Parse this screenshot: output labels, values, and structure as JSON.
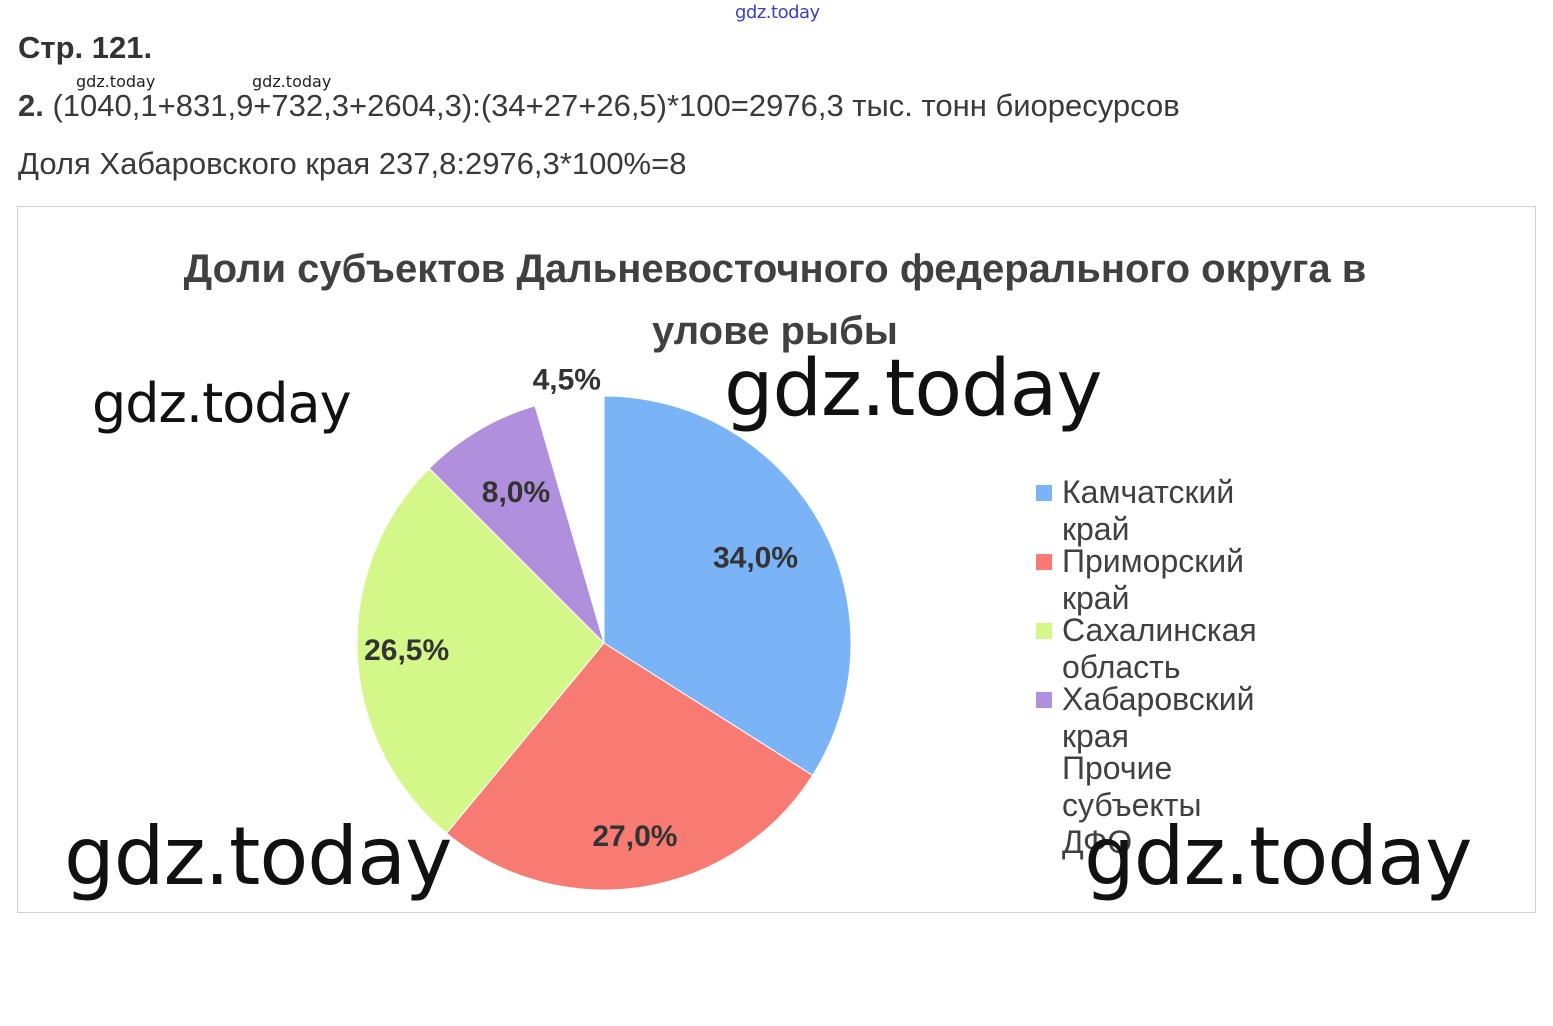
{
  "watermarks": {
    "top": "gdz.today",
    "small_1": "gdz.today",
    "small_2": "gdz.today",
    "big_left_top": "gdz.today",
    "big_center_top": "gdz.today",
    "big_left_bottom": "gdz.today",
    "big_right_bottom": "gdz.today"
  },
  "page": {
    "heading": "Стр. 121.",
    "task_number": "2.",
    "formula": "(1040,1+831,9+732,3+2604,3):(34+27+26,5)*100=2976,3 тыс. тонн биоресурсов",
    "share_line": "Доля Хабаровского края 237,8:2976,3*100%=8"
  },
  "chart_data": {
    "type": "pie",
    "title": "Доли субъектов Дальневосточного федерального округа в улове рыбы",
    "slices": [
      {
        "name": "Камчатский край",
        "value": 34.0,
        "label": "34,0%",
        "color": "#7ab4f7"
      },
      {
        "name": "Приморский край",
        "value": 27.0,
        "label": "27,0%",
        "color": "#f77b73"
      },
      {
        "name": "Сахалинская область",
        "value": 26.5,
        "label": "26,5%",
        "color": "#d4f78a"
      },
      {
        "name": "Хабаровский края",
        "value": 8.0,
        "label": "8,0%",
        "color": "#b090dc"
      },
      {
        "name": "Прочие субъекты\nДФО",
        "value": 4.5,
        "label": "4,5%",
        "color": "#ffffff"
      }
    ],
    "legend_position": "right",
    "start_angle_deg": 0,
    "direction": "clockwise"
  }
}
